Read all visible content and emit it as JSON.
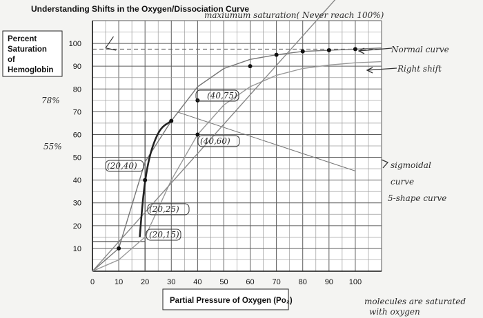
{
  "chart_data": {
    "type": "line",
    "title": "Understanding Shifts in the Oxygen/Dissociation Curve",
    "xlabel": "Partial Pressure of Oxygen (Po₂)",
    "ylabel": [
      "Percent",
      "Saturation",
      "of",
      "Hemoglobin"
    ],
    "xlim": [
      0,
      110
    ],
    "ylim": [
      0,
      110
    ],
    "x_ticks": [
      0,
      10,
      20,
      30,
      40,
      50,
      60,
      70,
      80,
      90,
      100
    ],
    "y_ticks": [
      10,
      20,
      30,
      40,
      50,
      60,
      70,
      80,
      90,
      100
    ],
    "grid": true,
    "series": [
      {
        "name": "Normal curve",
        "color": "#777777",
        "x": [
          0,
          10,
          20,
          30,
          40,
          50,
          60,
          70,
          80,
          90,
          100,
          110
        ],
        "y": [
          0,
          10,
          48,
          66,
          81,
          89,
          93,
          95,
          96.5,
          97,
          97.5,
          98
        ]
      },
      {
        "name": "Right shift",
        "color": "#999999",
        "x": [
          0,
          10,
          20,
          30,
          40,
          50,
          60,
          70,
          80,
          90,
          100,
          110
        ],
        "y": [
          0,
          5,
          15,
          40,
          60,
          73,
          81,
          86,
          89,
          90.5,
          91.5,
          92
        ]
      },
      {
        "name": "Maximum saturation line",
        "color": "#888888",
        "x": [
          0,
          110
        ],
        "y": [
          0,
          142
        ]
      }
    ],
    "markers": [
      {
        "x": 10,
        "y": 10
      },
      {
        "x": 20,
        "y": 40
      },
      {
        "x": 30,
        "y": 66
      },
      {
        "x": 40,
        "y": 75
      },
      {
        "x": 40,
        "y": 60
      },
      {
        "x": 60,
        "y": 90
      },
      {
        "x": 70,
        "y": 95
      },
      {
        "x": 80,
        "y": 96.5
      },
      {
        "x": 90,
        "y": 97
      },
      {
        "x": 100,
        "y": 97.5
      }
    ],
    "annotations": {
      "maximum": "maxiumum saturation( Never reach 100%)",
      "normal": "Normal curve",
      "right_shift": "Right shift",
      "sigmoidal_1": "sigmoidal",
      "sigmoidal_2": "curve",
      "sigmoidal_3": "5-shape curve",
      "molecules_1": "molecules are saturated",
      "molecules_2": "with oxygen",
      "pt_40_75": "(40,75)",
      "pt_40_60": "(40,60)",
      "pt_20_40": "(20,40)",
      "pt_20_25": "(20,25)",
      "pt_20_15": "(20,15)",
      "left_78": "78%",
      "left_55": "55%"
    }
  }
}
